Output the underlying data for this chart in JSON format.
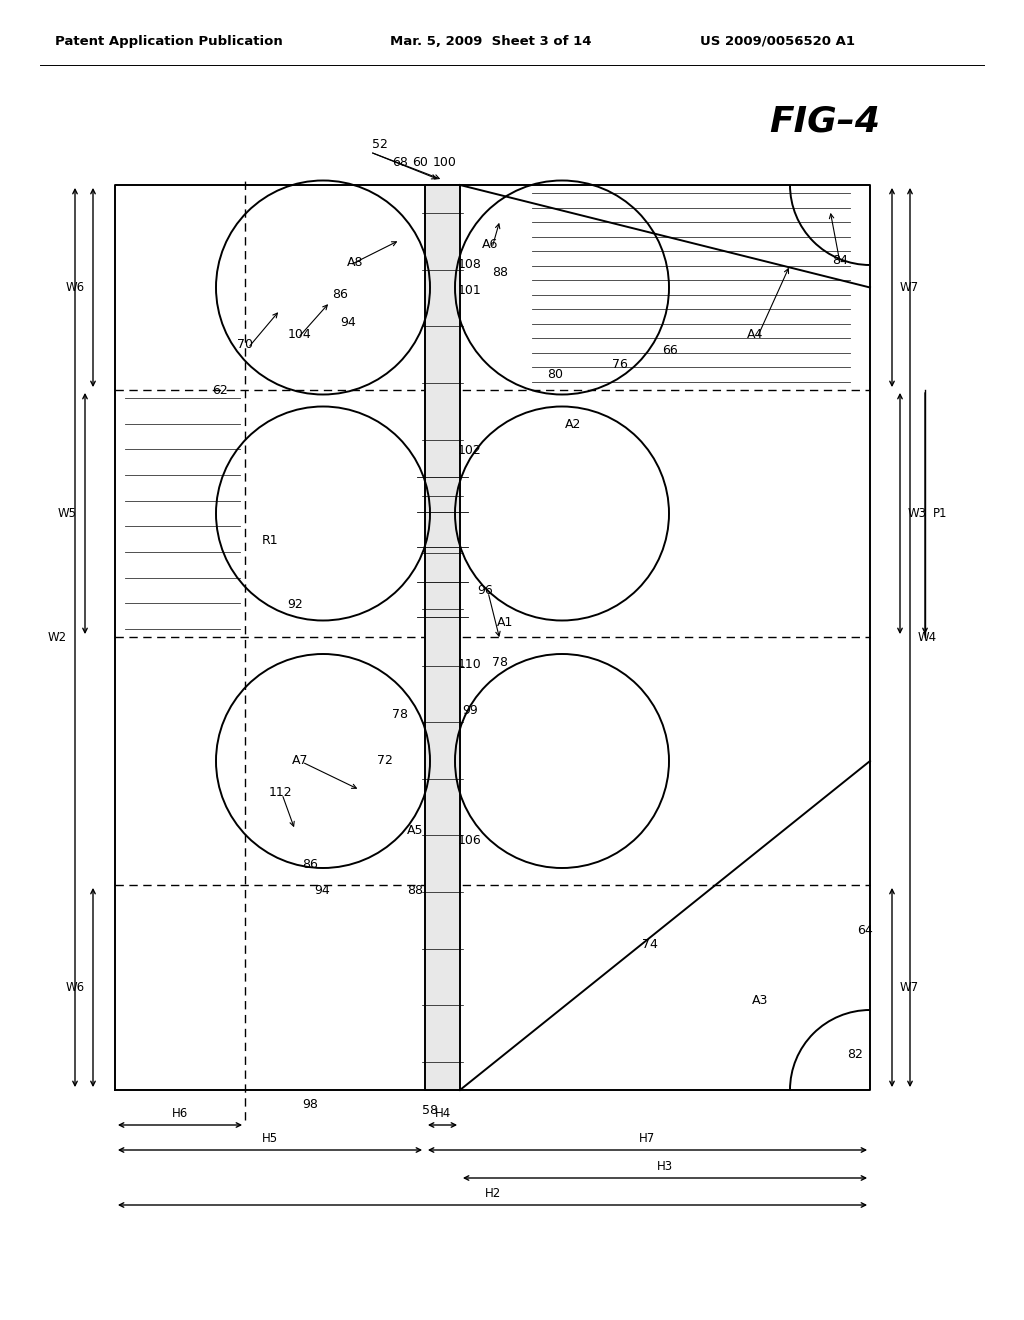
{
  "bg_color": "#ffffff",
  "header_left": "Patent Application Publication",
  "header_mid": "Mar. 5, 2009  Sheet 3 of 14",
  "header_right": "US 2009/0056520 A1",
  "fig_label": "FIG–4"
}
